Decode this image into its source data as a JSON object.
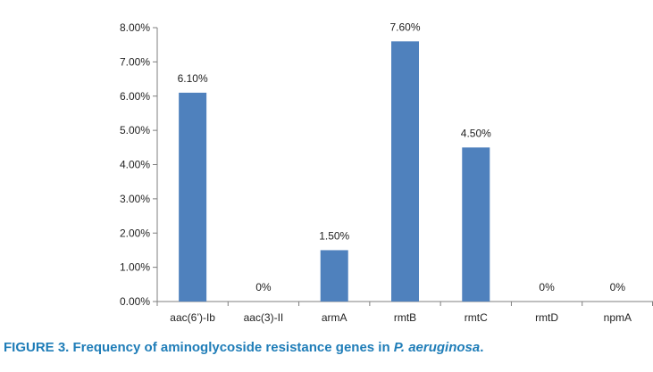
{
  "figure_caption": {
    "prefix": "FIGURE 3. Frequency of aminoglycoside resistance genes in ",
    "species": "P. aeruginosa",
    "suffix": ".",
    "color": "#1f7db8"
  },
  "chart_data": {
    "type": "bar",
    "categories": [
      "aac(6’)-Ib",
      "aac(3)-II",
      "armA",
      "rmtB",
      "rmtC",
      "rmtD",
      "npmA"
    ],
    "series": [
      {
        "values": [
          6.1,
          0,
          1.5,
          7.6,
          4.5,
          0,
          0
        ]
      }
    ],
    "data_labels": [
      "6.10%",
      "0%",
      "1.50%",
      "7.60%",
      "4.50%",
      "0%",
      "0%"
    ],
    "y_ticks": [
      "0.00%",
      "1.00%",
      "2.00%",
      "3.00%",
      "4.00%",
      "5.00%",
      "6.00%",
      "7.00%",
      "8.00%"
    ],
    "ylim": [
      0,
      8
    ],
    "y_unit": "percent",
    "grid": false,
    "legend": "none",
    "bar_color": "#4f81bd"
  }
}
